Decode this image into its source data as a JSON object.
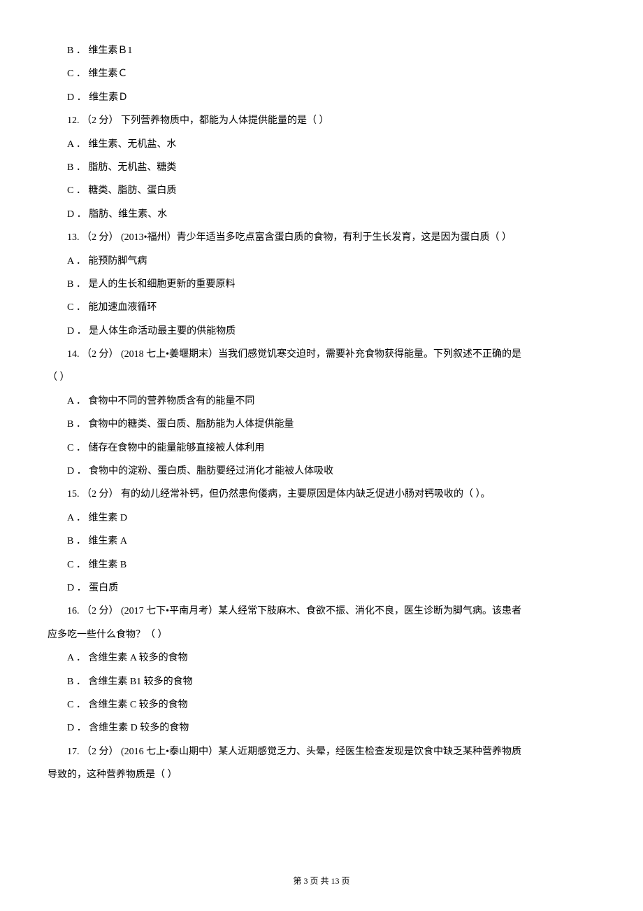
{
  "q11_options": {
    "b": "B ．  维生素Ｂ1",
    "c": "C ．  维生素Ｃ",
    "d": "D ．  维生素Ｄ"
  },
  "q12": {
    "stem": "12.  （2 分）   下列营养物质中，都能为人体提供能量的是（        ）",
    "a": "A ．  维生素、无机盐、水",
    "b": "B ．  脂肪、无机盐、糖类",
    "c": "C ．  糖类、脂肪、蛋白质",
    "d": "D ．  脂肪、维生素、水"
  },
  "q13": {
    "stem": "13.  （2 分）  (2013•福州）青少年适当多吃点富含蛋白质的食物，有利于生长发育，这是因为蛋白质（        ）",
    "a": "A ．  能预防脚气病",
    "b": "B ．  是人的生长和细胞更新的重要原料",
    "c": "C ．  能加速血液循环",
    "d": "D ．  是人体生命活动最主要的供能物质"
  },
  "q14": {
    "stem": "14.   （2 分）  (2018 七上•姜堰期末）当我们感觉饥寒交迫时，需要补充食物获得能量。下列叙述不正确的是",
    "stem2": "（        ）",
    "a": "A ．  食物中不同的营养物质含有的能量不同",
    "b": "B ．  食物中的糖类、蛋白质、脂肪能为人体提供能量",
    "c": "C ．  储存在食物中的能量能够直接被人体利用",
    "d": "D ．  食物中的淀粉、蛋白质、脂肪要经过消化才能被人体吸收"
  },
  "q15": {
    "stem": "15.  （2 分）   有的幼儿经常补钙，但仍然患佝偻病，主要原因是体内缺乏促进小肠对钙吸收的（        ）。",
    "a": "A ．  维生素 D",
    "b": "B ．  维生素 A",
    "c": "C ．  维生素 B",
    "d": "D ．  蛋白质"
  },
  "q16": {
    "stem": "16.   （2 分）  (2017 七下•平南月考）某人经常下肢麻木、食欲不振、消化不良，医生诊断为脚气病。该患者",
    "stem2": "应多吃一些什么食物？（        ）",
    "a": "A ．  含维生素 A 较多的食物",
    "b": "B ．  含维生素 B1 较多的食物",
    "c": "C ．  含维生素 C 较多的食物",
    "d": "D ．  含维生素 D 较多的食物"
  },
  "q17": {
    "stem": "17.   （2 分）  (2016 七上•泰山期中）某人近期感觉乏力、头晕，经医生检查发现是饮食中缺乏某种营养物质",
    "stem2": "导致的，这种营养物质是（        ）"
  },
  "footer": "第  3  页 共  13  页"
}
